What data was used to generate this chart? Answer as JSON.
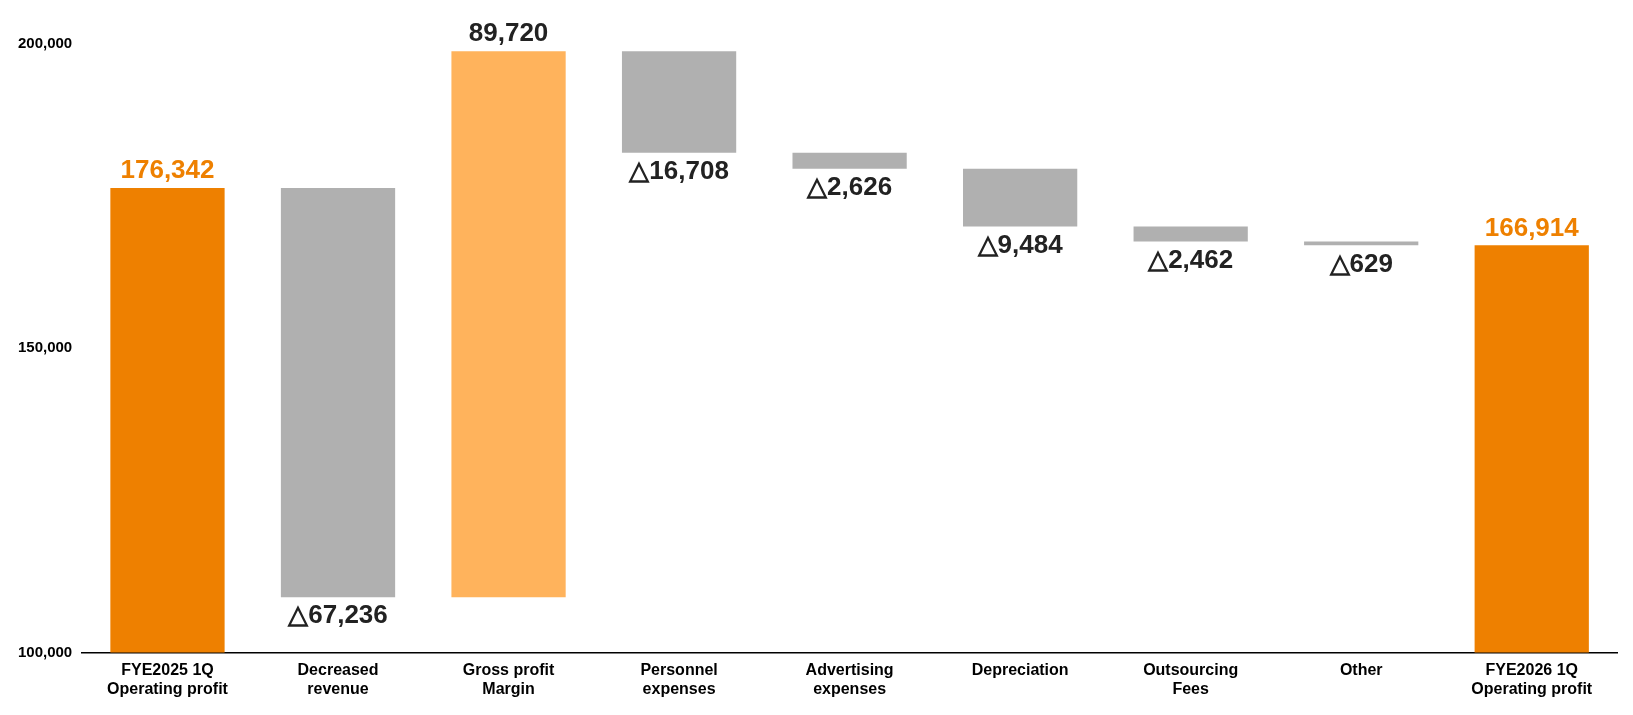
{
  "chart_data": {
    "type": "bar",
    "categories": [
      "FYE2025 1Q Operating profit",
      "Decreased revenue",
      "Gross profit Margin",
      "Personnel expenses",
      "Advertising expenses",
      "Depreciation",
      "Outsourcing Fees",
      "Other",
      "FYE2026 1Q Operating profit"
    ],
    "values": [
      176342,
      -67236,
      89720,
      -16708,
      -2626,
      -9484,
      -2462,
      -629,
      166914
    ],
    "base": [
      null,
      176342,
      109106,
      198826,
      182118,
      179492,
      170008,
      167546,
      null
    ],
    "colors": [
      "#ee8000",
      "#b0b0b0",
      "#ffb35c",
      "#b0b0b0",
      "#b0b0b0",
      "#b0b0b0",
      "#b0b0b0",
      "#b0b0b0",
      "#ee8000"
    ],
    "value_labels": [
      "176,342",
      "△67,236",
      "89,720",
      "△16,708",
      "△2,626",
      "△9,484",
      "△2,462",
      "△629",
      "166,914"
    ],
    "ylim": [
      100000,
      200000
    ],
    "yticks": [
      {
        "value": 100000,
        "label": "100,000"
      },
      {
        "value": 150000,
        "label": "150,000"
      },
      {
        "value": 200000,
        "label": "200,000"
      }
    ]
  }
}
